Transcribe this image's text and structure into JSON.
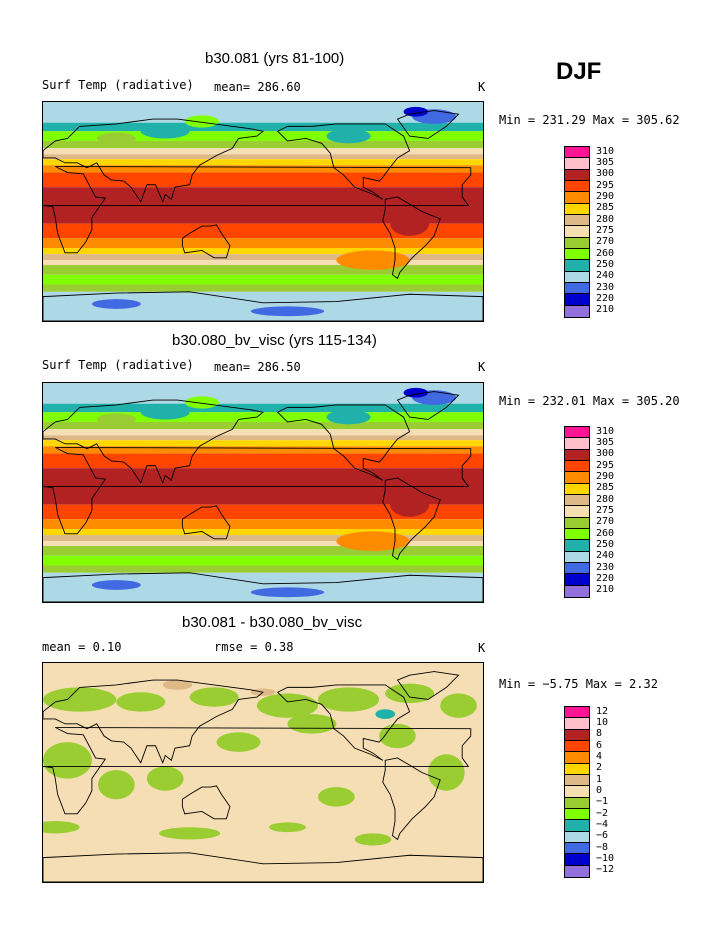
{
  "season": "DJF",
  "panels": [
    {
      "title": "b30.081 (yrs 81-100)",
      "left_label": "Surf Temp (radiative)",
      "mid_label": "mean= 286.60",
      "units": "K",
      "minmax": "Min = 231.29 Max = 305.62"
    },
    {
      "title": "b30.080_bv_visc (yrs 115-134)",
      "left_label": "Surf Temp (radiative)",
      "mid_label": "mean= 286.50",
      "units": "K",
      "minmax": "Min = 232.01 Max = 305.20"
    },
    {
      "title": "b30.081 - b30.080_bv_visc",
      "left_label": "mean =    0.10",
      "mid_label": "rmse =    0.38",
      "units": "K",
      "minmax": "Min =  −5.75 Max =    2.32"
    }
  ],
  "chart_data": [
    {
      "type": "heatmap",
      "title": "b30.081 (yrs 81-100)",
      "variable": "Surf Temp (radiative)",
      "mean": 286.6,
      "units": "K",
      "min": 231.29,
      "max": 305.62,
      "legend_placement": "right",
      "colorbar": {
        "labels": [
          "310",
          "305",
          "300",
          "295",
          "290",
          "285",
          "280",
          "275",
          "270",
          "260",
          "250",
          "240",
          "230",
          "220",
          "210"
        ],
        "colors": [
          "#ff1493",
          "#ffc0cb",
          "#b22222",
          "#ff4500",
          "#ff8c00",
          "#ffd700",
          "#deb887",
          "#f5deb3",
          "#9acd32",
          "#7fff00",
          "#20b2aa",
          "#add8e6",
          "#4169e1",
          "#0000cd",
          "#9370db"
        ]
      }
    },
    {
      "type": "heatmap",
      "title": "b30.080_bv_visc (yrs 115-134)",
      "variable": "Surf Temp (radiative)",
      "mean": 286.5,
      "units": "K",
      "min": 232.01,
      "max": 305.2,
      "legend_placement": "right",
      "colorbar": {
        "labels": [
          "310",
          "305",
          "300",
          "295",
          "290",
          "285",
          "280",
          "275",
          "270",
          "260",
          "250",
          "240",
          "230",
          "220",
          "210"
        ],
        "colors": [
          "#ff1493",
          "#ffc0cb",
          "#b22222",
          "#ff4500",
          "#ff8c00",
          "#ffd700",
          "#deb887",
          "#f5deb3",
          "#9acd32",
          "#7fff00",
          "#20b2aa",
          "#add8e6",
          "#4169e1",
          "#0000cd",
          "#9370db"
        ]
      }
    },
    {
      "type": "heatmap",
      "title": "b30.081 - b30.080_bv_visc",
      "mean": 0.1,
      "rmse": 0.38,
      "units": "K",
      "min": -5.75,
      "max": 2.32,
      "legend_placement": "right",
      "colorbar": {
        "labels": [
          "12",
          "10",
          "8",
          "6",
          "4",
          "2",
          "1",
          "0",
          "−1",
          "−2",
          "−4",
          "−6",
          "−8",
          "−10",
          "−12"
        ],
        "colors": [
          "#ff1493",
          "#ffc0cb",
          "#b22222",
          "#ff4500",
          "#ff8c00",
          "#ffd700",
          "#deb887",
          "#f5deb3",
          "#9acd32",
          "#7fff00",
          "#20b2aa",
          "#add8e6",
          "#4169e1",
          "#0000cd",
          "#9370db"
        ]
      }
    }
  ]
}
